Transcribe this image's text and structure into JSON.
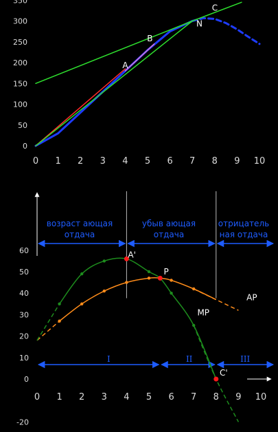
{
  "chart_data": [
    {
      "type": "line",
      "title": "",
      "xlabel": "",
      "ylabel": "",
      "xlim": [
        0,
        10
      ],
      "ylim": [
        0,
        350
      ],
      "x_ticks": [
        "0",
        "1",
        "2",
        "3",
        "4",
        "5",
        "6",
        "7",
        "8",
        "9",
        "10"
      ],
      "y_ticks": [
        "0",
        "50",
        "100",
        "150",
        "200",
        "250",
        "300",
        "350"
      ],
      "series": [
        {
          "color": "#1e3cff",
          "style": "solid",
          "x": [
            0,
            1,
            2,
            3,
            4,
            5,
            6,
            7
          ],
          "y": [
            0,
            30,
            80,
            130,
            180,
            230,
            275,
            300
          ]
        },
        {
          "color": "#1e3cff",
          "style": "dashed",
          "x": [
            7,
            7.5,
            8,
            8.5,
            9,
            9.5,
            10
          ],
          "y": [
            300,
            307,
            305,
            295,
            280,
            262,
            245
          ]
        },
        {
          "color": "#ff2a2a",
          "style": "solid",
          "x": [
            0,
            4
          ],
          "y": [
            0,
            185
          ]
        },
        {
          "color": "#e07ad0",
          "style": "solid",
          "x": [
            4,
            5.3
          ],
          "y": [
            180,
            245
          ]
        },
        {
          "color": "#2ee02e",
          "style": "solid",
          "x": [
            0,
            7
          ],
          "y": [
            150,
            300
          ]
        },
        {
          "color": "#2ee02e",
          "style": "solid",
          "x": [
            7,
            9.2
          ],
          "y": [
            300,
            345
          ]
        },
        {
          "color": "#2ee02e",
          "style": "solid",
          "x": [
            0,
            7
          ],
          "y": [
            0,
            300
          ]
        }
      ],
      "annotations": [
        {
          "text": "A",
          "x": 4,
          "y": 180
        },
        {
          "text": "B",
          "x": 5.1,
          "y": 245
        },
        {
          "text": "N",
          "x": 7.3,
          "y": 280
        },
        {
          "text": "C",
          "x": 8,
          "y": 318
        }
      ]
    },
    {
      "type": "line",
      "title": "",
      "xlabel": "",
      "ylabel": "",
      "xlim": [
        0,
        10
      ],
      "ylim": [
        -20,
        60
      ],
      "x_ticks": [
        "0",
        "1",
        "2",
        "3",
        "4",
        "5",
        "6",
        "7",
        "8",
        "9",
        "10"
      ],
      "y_ticks": [
        "0",
        "10",
        "20",
        "30",
        "40",
        "50",
        "60"
      ],
      "series": [
        {
          "name": "AP",
          "color": "#ff8c1a",
          "x": [
            0,
            1,
            2,
            3,
            4,
            5,
            5.5,
            6,
            7,
            8,
            9
          ],
          "y": [
            18,
            27,
            35,
            41,
            45,
            47,
            47,
            46,
            42,
            37,
            32
          ]
        },
        {
          "name": "MP",
          "color": "#1d8c1d",
          "x": [
            0,
            1,
            2,
            3,
            4,
            5,
            5.5,
            6,
            7,
            8,
            9
          ],
          "y": [
            18,
            35,
            49,
            55,
            56,
            50,
            47,
            40,
            25,
            0,
            -20
          ]
        }
      ],
      "points": [
        {
          "x": 4,
          "y": 56,
          "color": "#ff1a1a"
        },
        {
          "x": 5.5,
          "y": 47,
          "color": "#ff1a1a"
        },
        {
          "x": 8,
          "y": 0,
          "color": "#ff1a1a"
        }
      ],
      "vlines": [
        4,
        8
      ],
      "stages": {
        "increasing": "возрастающая отдача",
        "diminishing": "убывающая отдача",
        "negative": "отрицательная отдача"
      },
      "stage_words": {
        "increasing": [
          "возраст ающая",
          "отдача"
        ],
        "diminishing": [
          "убыв ающая",
          "отдача"
        ],
        "negative": [
          "отрицатель",
          "ная отдача"
        ]
      },
      "zones": [
        "I",
        "II",
        "III"
      ],
      "annotations": [
        {
          "text": "A'",
          "x": 4,
          "y": 56
        },
        {
          "text": "P",
          "x": 5.6,
          "y": 48
        },
        {
          "text": "AP",
          "x": 9.3,
          "y": 36
        },
        {
          "text": "MP",
          "x": 7.1,
          "y": 29
        },
        {
          "text": "C'",
          "x": 8.1,
          "y": 1
        }
      ]
    }
  ]
}
